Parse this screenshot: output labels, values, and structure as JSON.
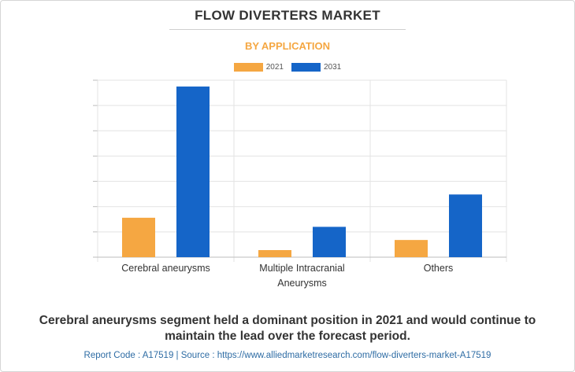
{
  "header": {
    "title": "FLOW DIVERTERS MARKET",
    "subtitle": "BY APPLICATION"
  },
  "colors": {
    "series_2021": "#f5a742",
    "series_2031": "#1565c8",
    "subtitle": "#f5a742",
    "grid": "#e3e3e3",
    "footer": "#2e6ca4"
  },
  "chart_data": {
    "type": "bar",
    "categories": [
      [
        "Cerebral aneurysms"
      ],
      [
        "Multiple Intracranial",
        "Aneurysms"
      ],
      [
        "Others"
      ]
    ],
    "series": [
      {
        "name": "2021",
        "values": [
          15.6,
          2.8,
          6.8
        ]
      },
      {
        "name": "2031",
        "values": [
          67.5,
          12.0,
          24.8
        ]
      }
    ],
    "title": "FLOW DIVERTERS MARKET",
    "subtitle": "BY APPLICATION",
    "xlabel": "",
    "ylabel": "",
    "ylim": [
      0,
      70
    ],
    "y_tick_step": 10,
    "y_tick_labels_shown": false,
    "grid": true,
    "legend_position": "top-center"
  },
  "caption": "Cerebral aneurysms segment held a dominant position in 2021 and would continue to maintain the lead over the forecast period.",
  "footer": "Report Code : A17519  |  Source : https://www.alliedmarketresearch.com/flow-diverters-market-A17519"
}
